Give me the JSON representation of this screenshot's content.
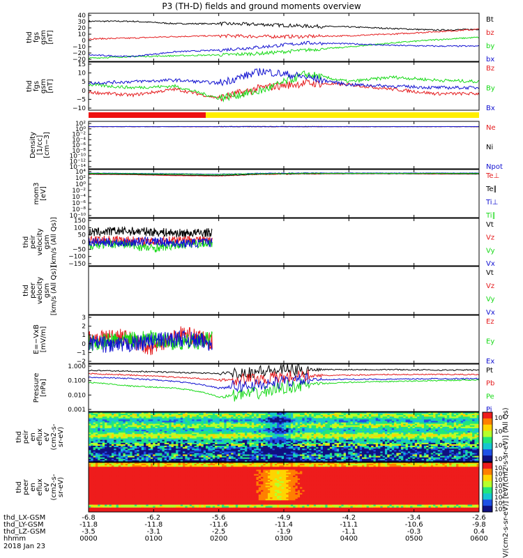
{
  "title": "P3 (TH-D) fields and ground moments overview",
  "colors": {
    "black": "#000000",
    "red": "#e41a1c",
    "green": "#16d916",
    "blue": "#1010d0"
  },
  "status_bar": {
    "red_label": "",
    "yellow_label": ""
  },
  "chart_data": [
    {
      "type": "line",
      "ylabel": [
        "thd",
        "fgs",
        "gsm",
        "[nT]"
      ],
      "ylim": [
        -20,
        40
      ],
      "yticks": [
        "40",
        "30",
        "20",
        "10",
        "0",
        "−10",
        "−20",
        "−20"
      ],
      "series": [
        {
          "name": "Bt",
          "color": "black",
          "values": [
            30,
            30,
            27,
            27,
            26,
            24,
            23,
            21,
            19,
            20
          ]
        },
        {
          "name": "bz",
          "color": "red",
          "values": [
            8,
            9,
            11,
            12,
            11,
            11,
            12,
            14,
            17,
            20
          ]
        },
        {
          "name": "by",
          "color": "green",
          "values": [
            -16,
            -14,
            -13,
            -12,
            -10,
            -6,
            -2,
            3,
            7,
            10
          ]
        },
        {
          "name": "bx",
          "color": "blue",
          "values": [
            -12,
            -14,
            -8,
            -6,
            -2,
            3,
            2,
            0,
            -1,
            -1
          ]
        }
      ]
    },
    {
      "type": "line",
      "ylabel": [
        "thd",
        "fgs",
        "gsm",
        "[nT]"
      ],
      "ylim": [
        -12,
        20
      ],
      "yticks": [
        "15",
        "10",
        "5",
        "0",
        "−5",
        "−10"
      ],
      "series": [
        {
          "name": "Bz",
          "color": "red",
          "values": [
            0,
            -2,
            2,
            -4,
            3,
            6,
            5,
            2,
            -1,
            -1
          ]
        },
        {
          "name": "By",
          "color": "green",
          "values": [
            5,
            3,
            4,
            -4,
            1,
            12,
            7,
            10,
            8,
            7
          ]
        },
        {
          "name": "Bx",
          "color": "blue",
          "values": [
            6,
            7,
            8,
            6,
            14,
            10,
            5,
            4,
            3,
            3
          ]
        }
      ]
    },
    {
      "type": "line",
      "ylabel": [
        "Density",
        "[1/cc]",
        "[cm−3]"
      ],
      "ylim": [
        -15,
        3
      ],
      "yticks": [
        "10²",
        "10⁰",
        "10⁻²",
        "10⁻⁴",
        "10⁻⁶",
        "10⁻⁸",
        "10⁻¹⁰",
        "10⁻¹²",
        "10⁻¹⁴"
      ],
      "series": [
        {
          "name": "Ne",
          "color": "red",
          "values": [
            1,
            1,
            1,
            1,
            1,
            1,
            1,
            1,
            1,
            1
          ]
        },
        {
          "name": "Ni",
          "color": "black",
          "values": [
            1,
            1,
            1,
            1,
            1,
            1,
            1,
            1,
            1,
            1
          ]
        },
        {
          "name": "Npot",
          "color": "blue",
          "values": [
            1,
            1,
            1,
            1,
            1,
            1,
            1,
            1,
            1,
            1
          ]
        }
      ]
    },
    {
      "type": "line",
      "ylabel": [
        "mom3",
        "[eV]"
      ],
      "ylim": [
        -10,
        5
      ],
      "yticks": [
        "10⁴",
        "10²",
        "10⁰",
        "10⁻²",
        "10⁻⁴",
        "10⁻⁶",
        "10⁻⁸",
        "10⁻¹⁰"
      ],
      "series": [
        {
          "name": "Te⊥",
          "color": "red",
          "values": [
            3.5,
            3.4,
            3.1,
            3.0,
            3.5,
            3.6,
            3.7,
            3.7,
            3.6,
            3.6
          ]
        },
        {
          "name": "Te∥",
          "color": "black",
          "values": [
            3.6,
            3.5,
            3.3,
            3.1,
            3.6,
            3.7,
            3.7,
            3.7,
            3.7,
            3.6
          ]
        },
        {
          "name": "Ti⊥",
          "color": "blue",
          "values": [
            3.9,
            3.8,
            3.7,
            3.5,
            3.8,
            3.9,
            3.9,
            3.9,
            3.9,
            3.9
          ]
        },
        {
          "name": "Ti∥",
          "color": "green",
          "values": [
            3.8,
            3.7,
            3.6,
            3.4,
            3.7,
            3.8,
            3.8,
            3.8,
            3.8,
            3.8
          ]
        }
      ]
    },
    {
      "type": "line",
      "ylabel": [
        "thd",
        "peir",
        "velocity",
        "gsm",
        "[km/s (All Qs)]"
      ],
      "ylim": [
        -150,
        150
      ],
      "yticks": [
        "150",
        "100",
        "50",
        "0",
        "−50",
        "−100",
        "−150"
      ],
      "series": [
        {
          "name": "Vt",
          "color": "black",
          "values": [
            60,
            70,
            65,
            55,
            60
          ]
        },
        {
          "name": "Vz",
          "color": "red",
          "values": [
            10,
            15,
            0,
            20,
            5
          ]
        },
        {
          "name": "Vy",
          "color": "green",
          "values": [
            -20,
            -10,
            -40,
            -15,
            -5
          ]
        },
        {
          "name": "Vx",
          "color": "blue",
          "values": [
            0,
            -5,
            5,
            -10,
            0
          ]
        }
      ]
    },
    {
      "type": "line",
      "ylabel": [
        "thd",
        "peer",
        "velocity",
        "gsm",
        "[km/s (All Qs)]"
      ],
      "ylim": [
        -150,
        150
      ],
      "yticks": [],
      "series": [
        {
          "name": "Vt",
          "color": "black",
          "values": []
        },
        {
          "name": "Vz",
          "color": "red",
          "values": []
        },
        {
          "name": "Vy",
          "color": "green",
          "values": []
        },
        {
          "name": "Vx",
          "color": "blue",
          "values": []
        }
      ]
    },
    {
      "type": "line",
      "ylabel": [
        "E=−VxB",
        "[mV/m]"
      ],
      "ylim": [
        -2.2,
        3
      ],
      "yticks": [
        "3",
        "2",
        "1",
        "0",
        "−1",
        "−2"
      ],
      "series": [
        {
          "name": "Ez",
          "color": "red",
          "values": [
            0.5,
            0.8,
            -0.5,
            1,
            0.2
          ]
        },
        {
          "name": "Ey",
          "color": "green",
          "values": [
            0,
            0.3,
            0.5,
            0,
            0.4
          ]
        },
        {
          "name": "Ex",
          "color": "blue",
          "values": [
            0,
            -0.3,
            0.2,
            0.5,
            0
          ]
        }
      ]
    },
    {
      "type": "line",
      "ylabel": [
        "Pressure",
        "[nPa]"
      ],
      "ylim": [
        0.001,
        1
      ],
      "yscale": "log",
      "yticks": [
        "1.000",
        "0.100",
        "0.010",
        "0.001"
      ],
      "series": [
        {
          "name": "Pt",
          "color": "black",
          "values": [
            0.4,
            0.35,
            0.3,
            0.25,
            0.35,
            0.45,
            0.45,
            0.45,
            0.42,
            0.42
          ]
        },
        {
          "name": "Pb",
          "color": "red",
          "values": [
            0.25,
            0.2,
            0.15,
            0.1,
            0.12,
            0.18,
            0.2,
            0.22,
            0.22,
            0.22
          ]
        },
        {
          "name": "Pe",
          "color": "green",
          "values": [
            0.07,
            0.04,
            0.03,
            0.008,
            0.015,
            0.05,
            0.07,
            0.08,
            0.09,
            0.1
          ]
        },
        {
          "name": "Pi",
          "color": "blue",
          "values": [
            0.15,
            0.12,
            0.08,
            0.03,
            0.05,
            0.1,
            0.11,
            0.11,
            0.12,
            0.12
          ]
        }
      ]
    },
    {
      "type": "heatmap",
      "ylabel": [
        "thd",
        "peir",
        "en",
        "eflux",
        "eV",
        "(cm2-s-",
        "sr-eV)"
      ],
      "yticks": [
        "10000",
        "1000",
        "100",
        "10"
      ],
      "colorbar": {
        "ticks": [
          "10⁸",
          "10⁶",
          "10⁴",
          "10²"
        ]
      }
    },
    {
      "type": "heatmap",
      "ylabel": [
        "thd",
        "peer",
        "en",
        "eflux",
        "eV",
        "(cm2-s-",
        "sr-eV)"
      ],
      "yticks": [
        "10000",
        "1000",
        "100",
        "10"
      ],
      "colorbar": {
        "ticks": [
          "10⁷",
          "10⁶",
          "10⁵",
          "10⁴",
          "10³",
          "10²",
          "10¹",
          "10⁰"
        ]
      }
    }
  ],
  "colorbar_label": "[eV/(cm2-s-sr-eV)] [eV/(cm2-s-sr-eV)] (All Qs)",
  "x_axis": {
    "rows": [
      {
        "label": "thd_LX-GSM",
        "values": [
          "-6.8",
          "-6.2",
          "-5.6",
          "-4.9",
          "-4.2",
          "-3.4",
          "-2.6"
        ]
      },
      {
        "label": "thd_LY-GSM",
        "values": [
          "-11.8",
          "-11.8",
          "-11.6",
          "-11.4",
          "-11.1",
          "-10.6",
          "-9.8"
        ]
      },
      {
        "label": "thd_LZ-GSM",
        "values": [
          "-3.5",
          "-3.1",
          "-2.5",
          "-1.9",
          "-1.1",
          "-0.3",
          "0.4"
        ]
      },
      {
        "label": "hhmm",
        "values": [
          "0000",
          "0100",
          "0200",
          "0300",
          "0400",
          "0500",
          "0600"
        ]
      }
    ],
    "date": "2018 Jan 23"
  }
}
